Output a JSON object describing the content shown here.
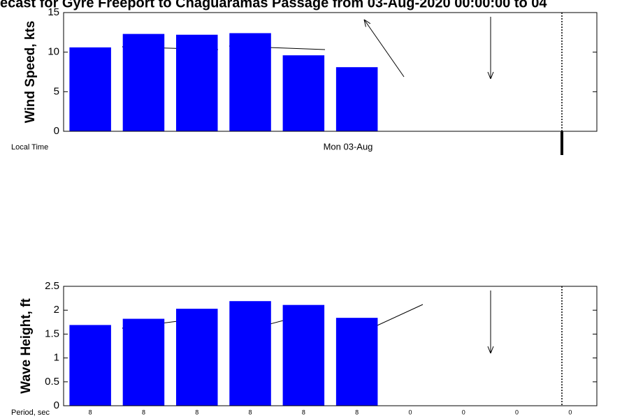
{
  "chart_data": [
    {
      "type": "bar",
      "title": "ecast for Gyre Freeport to Chaguaramas Passage from 03-Aug-2020 00:00:00 to 04",
      "ylabel": "Wind Speed, kts",
      "row_label": "Local Time",
      "xlabel": "Mon 03-Aug",
      "values": [
        10.6,
        12.3,
        12.2,
        12.4,
        9.6,
        8.1,
        null,
        null,
        null,
        null
      ],
      "color": "#0000ff",
      "ylim": [
        0,
        15
      ],
      "yticks": [
        0,
        5,
        10,
        15
      ]
    },
    {
      "type": "bar",
      "ylabel": "Wave Height, ft",
      "row_label": "Period, sec",
      "categories": [
        "8",
        "8",
        "8",
        "8",
        "8",
        "8",
        "0",
        "0",
        "0",
        "0"
      ],
      "values": [
        1.69,
        1.82,
        2.03,
        2.19,
        2.11,
        1.84,
        null,
        null,
        null,
        null
      ],
      "color": "#0000ff",
      "ylim": [
        0,
        2.5
      ],
      "yticks": [
        0,
        0.5,
        1,
        1.5,
        2,
        2.5
      ]
    }
  ]
}
